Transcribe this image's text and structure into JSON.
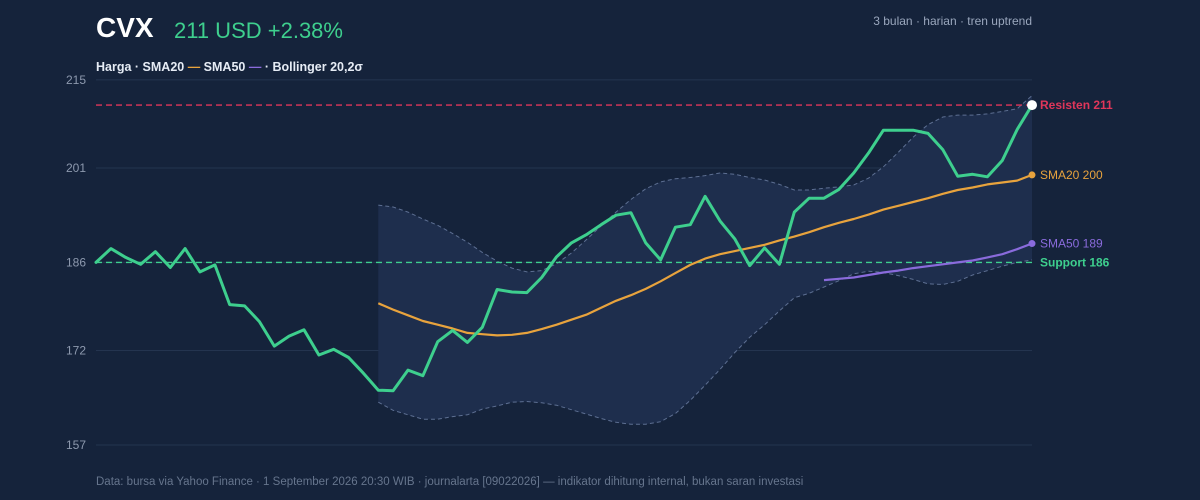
{
  "header": {
    "ticker": "CVX",
    "price_line": "211 USD +2.38%",
    "meta": "3 bulan · harian · tren uptrend"
  },
  "legend": {
    "price": "Harga · ",
    "sma20": "SMA20 ",
    "sma20_mark": "—",
    "sma50": " SMA50 ",
    "sma50_mark": "—",
    "sep": " · ",
    "boll": "Bollinger 20,2σ"
  },
  "footer": "Data: bursa via Yahoo Finance · 1 September 2026 20:30 WIB · journalarta [09022026] — indikator dihitung internal, bukan saran investasi",
  "colors": {
    "background": "#15233b",
    "price": "#3ecf8e",
    "sma20": "#e8a33d",
    "sma50": "#8a6bdc",
    "bollinger_band": "#1e2e4d",
    "bollinger_edge": "#5d6f92",
    "resistance": "#e0365a",
    "support": "#3ecf8e",
    "grid": "#24344f",
    "tick": "#8d99ae"
  },
  "chart_data": {
    "type": "line",
    "x_count": 64,
    "yticks": [
      215,
      201,
      186,
      172,
      157
    ],
    "ylim": [
      156.2,
      215.3
    ],
    "grid": true,
    "price": [
      186.0,
      188.2,
      186.8,
      185.7,
      187.7,
      185.2,
      188.2,
      184.5,
      185.6,
      179.3,
      179.1,
      176.6,
      172.7,
      174.3,
      175.3,
      171.3,
      172.2,
      170.9,
      168.4,
      165.7,
      165.6,
      168.9,
      168.0,
      173.4,
      175.2,
      173.3,
      175.7,
      181.7,
      181.3,
      181.2,
      183.6,
      186.9,
      189.1,
      190.4,
      192.0,
      193.5,
      193.9,
      189.1,
      186.4,
      191.6,
      192.0,
      196.5,
      192.6,
      189.7,
      185.5,
      188.3,
      185.7,
      194.0,
      196.2,
      196.2,
      197.6,
      200.2,
      203.4,
      207.0,
      207.0,
      207.0,
      206.5,
      203.9,
      199.7,
      200.0,
      199.6,
      202.2,
      207.1,
      211.0
    ],
    "sma20": [
      179.5,
      178.5,
      177.6,
      176.7,
      176.1,
      175.5,
      174.8,
      174.6,
      174.4,
      174.5,
      174.8,
      175.4,
      176.1,
      176.9,
      177.7,
      178.8,
      179.9,
      180.8,
      181.8,
      183.0,
      184.3,
      185.6,
      186.6,
      187.3,
      187.8,
      188.3,
      188.8,
      189.5,
      190.1,
      190.8,
      191.6,
      192.3,
      192.9,
      193.6,
      194.4,
      195.0,
      195.6,
      196.2,
      196.9,
      197.5,
      197.9,
      198.4,
      198.7,
      199.0,
      199.9
    ],
    "sma20_start_index": 19,
    "sma50": [
      183.2,
      183.4,
      183.6,
      184.0,
      184.4,
      184.7,
      185.1,
      185.4,
      185.7,
      186.0,
      186.3,
      186.8,
      187.3,
      188.1,
      189.0
    ],
    "sma50_start_index": 49,
    "bollinger_upper": [
      195.1,
      194.8,
      194.0,
      192.9,
      191.9,
      190.6,
      189.2,
      187.6,
      186.2,
      185.1,
      184.5,
      184.7,
      185.8,
      187.5,
      189.6,
      191.8,
      194.0,
      196.0,
      197.7,
      198.8,
      199.3,
      199.5,
      199.8,
      200.2,
      200.0,
      199.5,
      199.1,
      198.4,
      197.5,
      197.5,
      197.8,
      198.0,
      198.3,
      199.4,
      201.2,
      203.5,
      205.9,
      207.9,
      209.1,
      209.4,
      209.4,
      209.6,
      210.0,
      210.4,
      212.5
    ],
    "bollinger_lower": [
      163.8,
      162.5,
      161.8,
      161.1,
      161.1,
      161.5,
      161.8,
      162.7,
      163.2,
      163.8,
      163.9,
      163.7,
      163.3,
      162.6,
      161.9,
      161.2,
      160.6,
      160.3,
      160.3,
      160.7,
      162.0,
      164.1,
      166.5,
      169.0,
      171.7,
      174.1,
      176.1,
      178.3,
      180.4,
      181.1,
      182.1,
      183.1,
      184.2,
      184.6,
      184.4,
      183.9,
      183.3,
      182.6,
      182.5,
      183.0,
      184.0,
      184.7,
      185.4,
      186.0,
      186.4
    ],
    "bollinger_start_index": 19,
    "resistance": {
      "value": 211,
      "label": "Resisten 211"
    },
    "support": {
      "value": 186,
      "label": "Support 186"
    },
    "end_labels": {
      "sma20": "SMA20 200",
      "sma50": "SMA50 189"
    }
  }
}
